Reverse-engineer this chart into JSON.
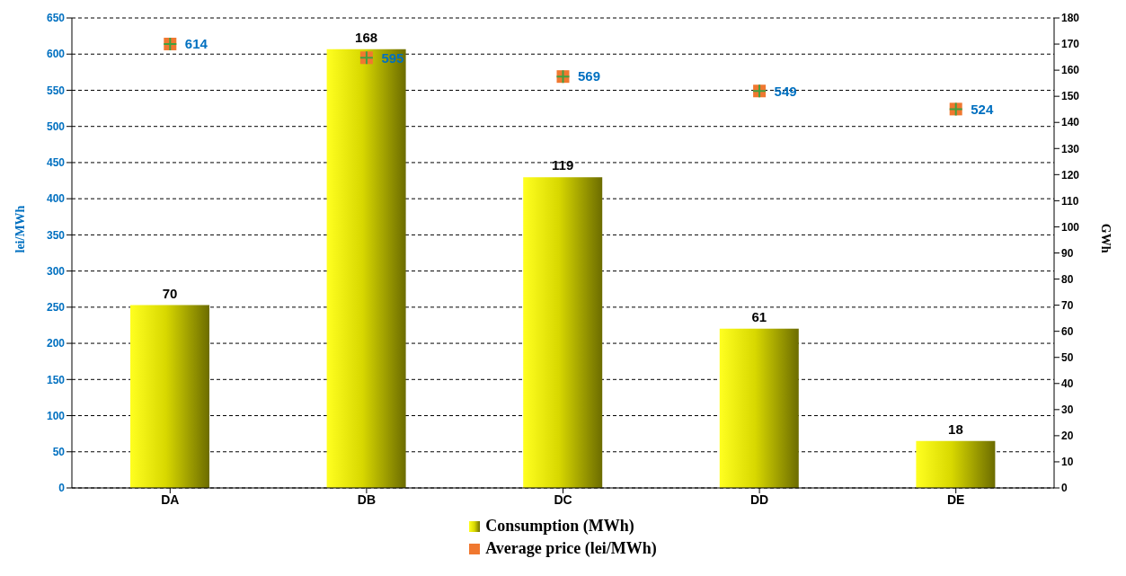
{
  "chart_data": {
    "type": "bar",
    "ylabel": "lei/MWh",
    "y2label": "GWh",
    "categories": [
      "DA",
      "DB",
      "DC",
      "DD",
      "DE"
    ],
    "series": [
      {
        "name": "Consumption (MWh)",
        "axis": "y2",
        "color": "#d8d800",
        "values": [
          70,
          168,
          119,
          61,
          18
        ]
      },
      {
        "name": "Average price (lei/MWh)",
        "type": "scatter",
        "axis": "y",
        "color": "#f07830",
        "values": [
          614,
          595,
          569,
          549,
          524
        ]
      }
    ],
    "ylim": [
      0,
      650
    ],
    "yticks": [
      0,
      50,
      100,
      150,
      200,
      250,
      300,
      350,
      400,
      450,
      500,
      550,
      600,
      650
    ],
    "y2lim": [
      0,
      180
    ],
    "y2ticks": [
      0,
      10,
      20,
      30,
      40,
      50,
      60,
      70,
      80,
      90,
      100,
      110,
      120,
      130,
      140,
      150,
      160,
      170,
      180
    ],
    "grid": "y",
    "legend": "bottom",
    "marker": "square",
    "data_labels": true
  }
}
